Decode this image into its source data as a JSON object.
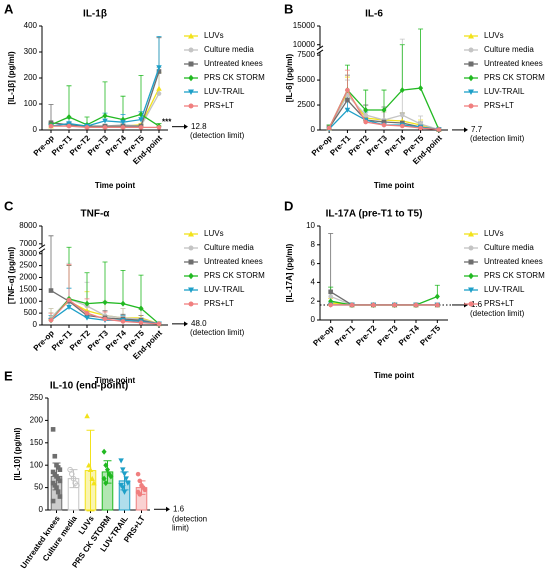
{
  "chart_data": [
    {
      "panel": "A",
      "type": "line",
      "title": "IL-1β",
      "y_label": "[IL-1β] (pg/ml)",
      "x_label": "Time point",
      "categories": [
        "Pre-op",
        "Pre-T1",
        "Pre-T2",
        "Pre-T3",
        "Pre-T4",
        "Pre-T5",
        "End-point"
      ],
      "ylim": [
        0,
        400
      ],
      "yticks": [
        0,
        100,
        200,
        300,
        400
      ],
      "detection": {
        "value": 12.8,
        "label": "12.8",
        "text": "(detection limit)"
      },
      "annotation": "***",
      "series": [
        {
          "name": "LUVs",
          "color": "#f2e21b",
          "marker": "triangle-up",
          "values": [
            15,
            20,
            15,
            15,
            15,
            20,
            160
          ],
          "errors": [
            10,
            10,
            5,
            5,
            5,
            5,
            60
          ]
        },
        {
          "name": "Culture media",
          "color": "#c4c4c4",
          "marker": "circle",
          "values": [
            15,
            20,
            15,
            15,
            20,
            15,
            140
          ],
          "errors": [
            10,
            10,
            5,
            5,
            5,
            5,
            100
          ]
        },
        {
          "name": "Untreated knees",
          "color": "#6e6e6e",
          "marker": "square",
          "values": [
            28,
            20,
            15,
            15,
            15,
            15,
            225
          ],
          "errors": [
            70,
            10,
            5,
            5,
            5,
            5,
            130
          ]
        },
        {
          "name": "PRS CK STORM",
          "color": "#22b922",
          "marker": "diamond",
          "values": [
            20,
            50,
            20,
            55,
            40,
            60,
            15
          ],
          "errors": [
            10,
            120,
            30,
            130,
            90,
            150,
            10
          ]
        },
        {
          "name": "LUV-TRAIL",
          "color": "#1ea0c8",
          "marker": "triangle-down",
          "values": [
            15,
            25,
            15,
            35,
            30,
            40,
            240
          ],
          "errors": [
            10,
            20,
            10,
            30,
            30,
            30,
            120
          ]
        },
        {
          "name": "PRS+LT",
          "color": "#f07f7f",
          "marker": "circle",
          "values": [
            15,
            15,
            10,
            10,
            10,
            10,
            10
          ],
          "errors": [
            5,
            5,
            5,
            5,
            5,
            5,
            5
          ]
        }
      ]
    },
    {
      "panel": "B",
      "type": "line",
      "title": "IL-6",
      "y_label": "[IL-6] (pg/ml)",
      "x_label": "Time point",
      "categories": [
        "Pre-op",
        "Pre-T1",
        "Pre-T2",
        "Pre-T3",
        "Pre-T4",
        "Pre-T5",
        "End-point"
      ],
      "ylim": [
        0,
        15000
      ],
      "ybreak": [
        7500,
        10000
      ],
      "yticks": [
        0,
        2500,
        5000,
        7500,
        10000,
        15000
      ],
      "detection": {
        "value": 7.7,
        "label": "7.7",
        "text": "(detection limit)"
      },
      "series": [
        {
          "name": "LUVs",
          "color": "#f2e21b",
          "marker": "triangle-up",
          "values": [
            200,
            3800,
            1200,
            1000,
            900,
            500,
            50
          ],
          "errors": [
            200,
            1500,
            800,
            800,
            800,
            500,
            20
          ]
        },
        {
          "name": "Culture media",
          "color": "#c4c4c4",
          "marker": "circle",
          "values": [
            200,
            3500,
            1500,
            1000,
            1500,
            600,
            50
          ],
          "errors": [
            200,
            1500,
            1000,
            800,
            10000,
            800,
            20
          ]
        },
        {
          "name": "Untreated knees",
          "color": "#6e6e6e",
          "marker": "square",
          "values": [
            200,
            3000,
            1000,
            800,
            700,
            300,
            50
          ],
          "errors": [
            300,
            2500,
            1500,
            1500,
            1000,
            500,
            20
          ]
        },
        {
          "name": "PRS CK STORM",
          "color": "#22b922",
          "marker": "diamond",
          "values": [
            200,
            4000,
            2000,
            2000,
            4000,
            4200,
            50
          ],
          "errors": [
            300,
            2500,
            2000,
            2000,
            6000,
            10000,
            20
          ]
        },
        {
          "name": "LUV-TRAIL",
          "color": "#1ea0c8",
          "marker": "triangle-down",
          "values": [
            100,
            2000,
            1000,
            500,
            500,
            300,
            50
          ],
          "errors": [
            100,
            1500,
            800,
            400,
            400,
            300,
            20
          ]
        },
        {
          "name": "PRS+LT",
          "color": "#f07f7f",
          "marker": "circle",
          "values": [
            200,
            4000,
            800,
            500,
            400,
            200,
            50
          ],
          "errors": [
            200,
            2000,
            500,
            400,
            300,
            200,
            20
          ]
        }
      ]
    },
    {
      "panel": "C",
      "type": "line",
      "title": "TNF-α",
      "y_label": "[TNF-α] (pg/ml)",
      "x_label": "Time point",
      "categories": [
        "Pre-op",
        "Pre-T1",
        "Pre-T2",
        "Pre-T3",
        "Pre-T4",
        "Pre-T5",
        "End-point"
      ],
      "ylim": [
        0,
        8000
      ],
      "ybreak": [
        3000,
        7000
      ],
      "yticks": [
        0,
        500,
        1000,
        1500,
        2000,
        2500,
        3000,
        7000,
        8000
      ],
      "detection": {
        "value": 48,
        "label": "48.0",
        "text": "(detection limit)"
      },
      "series": [
        {
          "name": "LUVs",
          "color": "#f2e21b",
          "marker": "triangle-up",
          "values": [
            300,
            1000,
            600,
            400,
            300,
            300,
            50
          ],
          "errors": [
            400,
            1500,
            800,
            600,
            400,
            400,
            20
          ]
        },
        {
          "name": "Culture media",
          "color": "#c4c4c4",
          "marker": "circle",
          "values": [
            300,
            1100,
            800,
            400,
            300,
            250,
            50
          ],
          "errors": [
            400,
            1500,
            1000,
            600,
            400,
            400,
            20
          ]
        },
        {
          "name": "Untreated knees",
          "color": "#6e6e6e",
          "marker": "square",
          "values": [
            1450,
            1000,
            400,
            300,
            250,
            200,
            50
          ],
          "errors": [
            6000,
            1500,
            400,
            300,
            200,
            200,
            20
          ]
        },
        {
          "name": "PRS CK STORM",
          "color": "#22b922",
          "marker": "diamond",
          "values": [
            200,
            1100,
            900,
            950,
            900,
            700,
            50
          ],
          "errors": [
            300,
            4500,
            1300,
            1700,
            1400,
            1400,
            20
          ]
        },
        {
          "name": "LUV-TRAIL",
          "color": "#1ea0c8",
          "marker": "triangle-down",
          "values": [
            200,
            750,
            300,
            200,
            200,
            150,
            50
          ],
          "errors": [
            200,
            800,
            300,
            200,
            200,
            150,
            20
          ]
        },
        {
          "name": "PRS+LT",
          "color": "#f07f7f",
          "marker": "circle",
          "values": [
            200,
            1050,
            500,
            250,
            150,
            100,
            50
          ],
          "errors": [
            300,
            1500,
            600,
            300,
            200,
            100,
            20
          ]
        }
      ]
    },
    {
      "panel": "D",
      "type": "line",
      "title": "IL-17A (pre-T1 to T5)",
      "y_label": "[IL-17A] (pg/ml)",
      "x_label": "Time point",
      "categories": [
        "Pre-op",
        "Pre-T1",
        "Pre-T2",
        "Pre-T3",
        "Pre-T4",
        "Pre-T5"
      ],
      "ylim": [
        0,
        10
      ],
      "yticks": [
        0,
        2,
        4,
        6,
        8,
        10
      ],
      "detection": {
        "value": 1.6,
        "label": "1.6",
        "text": "(detection limit)"
      },
      "detection_line": true,
      "series": [
        {
          "name": "LUVs",
          "color": "#f2e21b",
          "marker": "triangle-up",
          "values": [
            1.8,
            1.6,
            1.6,
            1.6,
            1.6,
            1.6
          ],
          "errors": [
            0.5,
            0.1,
            0.1,
            0.1,
            0.1,
            0.1
          ]
        },
        {
          "name": "Culture media",
          "color": "#c4c4c4",
          "marker": "circle",
          "values": [
            2.5,
            1.6,
            1.6,
            1.6,
            1.6,
            1.6
          ],
          "errors": [
            1,
            0.1,
            0.1,
            0.1,
            0.1,
            0.1
          ]
        },
        {
          "name": "Untreated knees",
          "color": "#6e6e6e",
          "marker": "square",
          "values": [
            3,
            1.6,
            1.6,
            1.6,
            1.6,
            1.6
          ],
          "errors": [
            6.2,
            0.1,
            0.1,
            0.1,
            0.1,
            0.1
          ]
        },
        {
          "name": "PRS CK STORM",
          "color": "#22b922",
          "marker": "diamond",
          "values": [
            2,
            1.6,
            1.6,
            1.6,
            1.6,
            2.5
          ],
          "errors": [
            1.5,
            0.1,
            0.1,
            0.1,
            0.1,
            1.2
          ]
        },
        {
          "name": "LUV-TRAIL",
          "color": "#1ea0c8",
          "marker": "triangle-down",
          "values": [
            1.6,
            1.6,
            1.6,
            1.6,
            1.6,
            1.6
          ],
          "errors": [
            0.1,
            0.1,
            0.1,
            0.1,
            0.1,
            0.1
          ]
        },
        {
          "name": "PRS+LT",
          "color": "#f07f7f",
          "marker": "circle",
          "values": [
            1.6,
            1.6,
            1.6,
            1.6,
            1.6,
            1.6
          ],
          "errors": [
            0.1,
            0.1,
            0.1,
            0.1,
            0.1,
            0.1
          ]
        }
      ]
    },
    {
      "panel": "E",
      "type": "bar",
      "title": "IL-10 (end-point)",
      "y_label": "[IL-10] (pg/ml)",
      "categories": [
        "Untreated knees",
        "Culture media",
        "LUVs",
        "PRS CK STORM",
        "LUV-TRAIL",
        "PRS+LT"
      ],
      "ylim": [
        0,
        250
      ],
      "yticks": [
        0,
        50,
        100,
        150,
        200,
        250
      ],
      "detection": {
        "value": 1.6,
        "label": "1.6",
        "text": "(detection limit)"
      },
      "values": [
        75,
        70,
        88,
        85,
        65,
        50
      ],
      "errors": [
        30,
        20,
        90,
        25,
        20,
        15
      ],
      "colors": [
        "#6e6e6e",
        "#c4c4c4",
        "#f2e21b",
        "#22b922",
        "#1ea0c8",
        "#f07f7f"
      ],
      "markers": [
        "square",
        "circle",
        "triangle-up",
        "diamond",
        "triangle-down",
        "circle"
      ],
      "points": [
        [
          180,
          120,
          100,
          95,
          90,
          85,
          80,
          75,
          70,
          65,
          60,
          55,
          50,
          40,
          30,
          20
        ],
        [
          90,
          80,
          70,
          60,
          55
        ],
        [
          210,
          100,
          90,
          70,
          60
        ],
        [
          130,
          100,
          90,
          80,
          75,
          70,
          60
        ],
        [
          110,
          90,
          80,
          70,
          60,
          55,
          50,
          40
        ],
        [
          80,
          65,
          55,
          50,
          45,
          40,
          35
        ]
      ]
    }
  ]
}
